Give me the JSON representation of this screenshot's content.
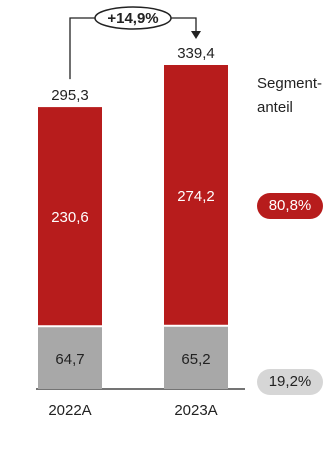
{
  "chart_data": {
    "type": "bar",
    "stacked": true,
    "categories": [
      "2022A",
      "2023A"
    ],
    "series": [
      {
        "values": [
          64.7,
          65.2
        ],
        "labels": [
          "64,7",
          "65,2"
        ],
        "color": "#a8a8a8"
      },
      {
        "values": [
          230.6,
          274.2
        ],
        "labels": [
          "230,6",
          "274,2"
        ],
        "color": "#b71c1c"
      }
    ],
    "totals": [
      295.3,
      339.4
    ],
    "total_labels": [
      "295,3",
      "339,4"
    ],
    "growth_label": "+14,9%",
    "ylim": [
      0,
      339.4
    ],
    "grid": false
  },
  "legend": {
    "title_line1": "Segment-",
    "title_line2": "anteil",
    "share_red": "80,8%",
    "share_grey": "19,2%",
    "color_red": "#b71c1c",
    "color_grey": "#d6d6d6"
  }
}
